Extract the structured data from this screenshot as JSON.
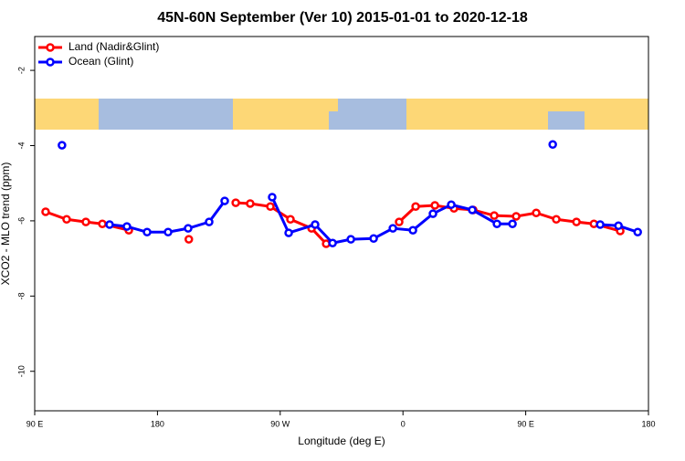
{
  "chart_data": {
    "type": "line",
    "title": "45N-60N September (Ver 10)   2015-01-01 to 2020-12-18",
    "x_label": "Longitude (deg E)",
    "y_label": "XCO2 - MLO trend (ppm)",
    "xlim": [
      90,
      540
    ],
    "ylim": [
      -11.05,
      -1.1
    ],
    "xticks": [
      {
        "value": 90,
        "label": "90 E"
      },
      180,
      {
        "value": 270,
        "label": "90 W"
      },
      {
        "value": 360,
        "label": "0"
      },
      {
        "value": 450,
        "label": "90 E"
      },
      {
        "value": 540,
        "label": "180"
      }
    ],
    "yticks": [
      -2,
      -4,
      -6,
      -8,
      -10
    ],
    "legend": "top-left",
    "series": [
      {
        "name": "Land (Nadir&Glint)",
        "color": "#ff0000",
        "x": [
          98,
          113.4,
          127.5,
          139.6,
          159,
          null,
          203,
          null,
          237.4,
          248,
          262.8,
          277.5,
          293,
          303.7,
          null,
          357.2,
          369.3,
          383.4,
          397.4,
          411.5,
          426.9,
          443,
          457.7,
          472.4,
          487.2,
          500,
          519.3
        ],
        "values": [
          -5.76,
          -5.96,
          -6.03,
          -6.08,
          -6.25,
          null,
          -6.49,
          null,
          -5.52,
          -5.54,
          -5.62,
          -5.96,
          -6.2,
          -6.61,
          null,
          -6.03,
          -5.62,
          -5.59,
          -5.67,
          -5.71,
          -5.86,
          -5.88,
          -5.79,
          -5.96,
          -6.03,
          -6.08,
          -6.27
        ]
      },
      {
        "name": "Ocean (Glint)",
        "color": "#0000ff",
        "x": [
          110,
          null,
          144.9,
          157.6,
          172.4,
          187.8,
          202.5,
          217.9,
          229.3,
          null,
          264.1,
          276.2,
          295.6,
          308.4,
          321.8,
          338.5,
          352.6,
          367.3,
          382,
          395.4,
          410.8,
          428.9,
          440.3,
          null,
          469.8,
          null,
          504.6,
          518,
          532.1
        ],
        "values": [
          -3.99,
          null,
          -6.1,
          -6.15,
          -6.3,
          -6.3,
          -6.2,
          -6.03,
          -5.47,
          null,
          -5.37,
          -6.32,
          -6.1,
          -6.59,
          -6.49,
          -6.47,
          -6.2,
          -6.25,
          -5.81,
          -5.57,
          -5.71,
          -6.08,
          -6.08,
          null,
          -3.97,
          null,
          -6.1,
          -6.13,
          -6.3
        ]
      }
    ]
  }
}
